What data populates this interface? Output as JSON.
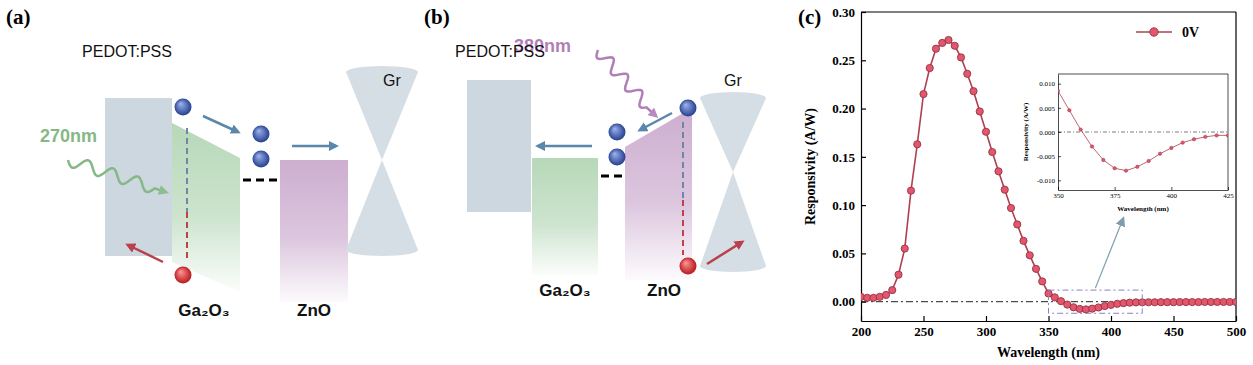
{
  "panel_labels": [
    "(a)",
    "(b)",
    "(c)"
  ],
  "diagrams": [
    {
      "layers": [
        "PEDOT:PSS",
        "Ga₂O₃",
        "ZnO",
        "Gr"
      ],
      "light": "270nm"
    },
    {
      "layers": [
        "PEDOT:PSS",
        "Ga₂O₃",
        "ZnO",
        "Gr"
      ],
      "light": "380nm"
    }
  ],
  "chart_data": [
    {
      "type": "line",
      "xlabel": "Wavelength (nm)",
      "ylabel": "Responsivity (A/W)",
      "x": [
        200,
        205,
        210,
        215,
        220,
        225,
        230,
        235,
        240,
        245,
        250,
        255,
        260,
        265,
        270,
        275,
        280,
        285,
        290,
        295,
        300,
        305,
        310,
        315,
        320,
        325,
        330,
        335,
        340,
        345,
        350,
        355,
        360,
        365,
        370,
        375,
        380,
        385,
        390,
        395,
        400,
        405,
        410,
        415,
        420,
        425,
        430,
        435,
        440,
        445,
        450,
        455,
        460,
        465,
        470,
        475,
        480,
        485,
        490,
        495,
        500
      ],
      "xlim": [
        200,
        500
      ],
      "xticks": [
        200,
        250,
        300,
        350,
        400,
        450,
        500
      ],
      "ylim": [
        -0.02,
        0.3
      ],
      "yticks": [
        {
          "value": 0,
          "label": "0.00"
        },
        {
          "value": 0.05,
          "label": "0.05"
        },
        {
          "value": 0.1,
          "label": "0.10"
        },
        {
          "value": 0.15,
          "label": "0.15"
        },
        {
          "value": 0.2,
          "label": "0.20"
        },
        {
          "value": 0.25,
          "label": "0.25"
        },
        {
          "value": 0.3,
          "label": "0.30"
        }
      ],
      "hline": 0,
      "legend": "upper right",
      "series": [
        {
          "name": "0V",
          "color": "#c0475a",
          "marker": "circle",
          "values": [
            0.005,
            0.004,
            0.004,
            0.005,
            0.007,
            0.012,
            0.028,
            0.055,
            0.115,
            0.163,
            0.215,
            0.242,
            0.262,
            0.268,
            0.271,
            0.265,
            0.253,
            0.236,
            0.218,
            0.197,
            0.176,
            0.155,
            0.135,
            0.116,
            0.097,
            0.08,
            0.063,
            0.048,
            0.034,
            0.021,
            0.0085,
            0.0045,
            0.0005,
            -0.003,
            -0.0058,
            -0.0075,
            -0.008,
            -0.0072,
            -0.006,
            -0.0045,
            -0.0033,
            -0.0022,
            -0.0015,
            -0.001,
            -0.0007,
            -0.0007,
            -0.0006,
            -0.0006,
            -0.0005,
            -0.0005,
            -0.0005,
            -0.0004,
            -0.0004,
            -0.0004,
            -0.0004,
            -0.0003,
            -0.0003,
            -0.0003,
            -0.0003,
            -0.0003,
            -0.0003
          ]
        }
      ]
    },
    {
      "type": "line",
      "xlabel": "Wavelength (nm)",
      "ylabel": "Responsivity (A/W)",
      "x": [
        350,
        355,
        360,
        365,
        370,
        375,
        380,
        385,
        390,
        395,
        400,
        405,
        410,
        415,
        420,
        425
      ],
      "xlim": [
        350,
        425
      ],
      "xticks": [
        350,
        375,
        400,
        425
      ],
      "ylim": [
        -0.012,
        0.012
      ],
      "yticks": [
        {
          "value": -0.01,
          "label": "-0.010"
        },
        {
          "value": -0.005,
          "label": "-0.005"
        },
        {
          "value": 0,
          "label": "0.000"
        },
        {
          "value": 0.005,
          "label": "0.005"
        },
        {
          "value": 0.01,
          "label": "0.010"
        }
      ],
      "hline": 0,
      "series": [
        {
          "color": "#c0475a",
          "marker": "circle",
          "values": [
            0.0085,
            0.0045,
            0.0005,
            -0.003,
            -0.0058,
            -0.0075,
            -0.008,
            -0.0072,
            -0.006,
            -0.0045,
            -0.0033,
            -0.0022,
            -0.0015,
            -0.001,
            -0.0007,
            -0.0007
          ]
        }
      ]
    }
  ]
}
